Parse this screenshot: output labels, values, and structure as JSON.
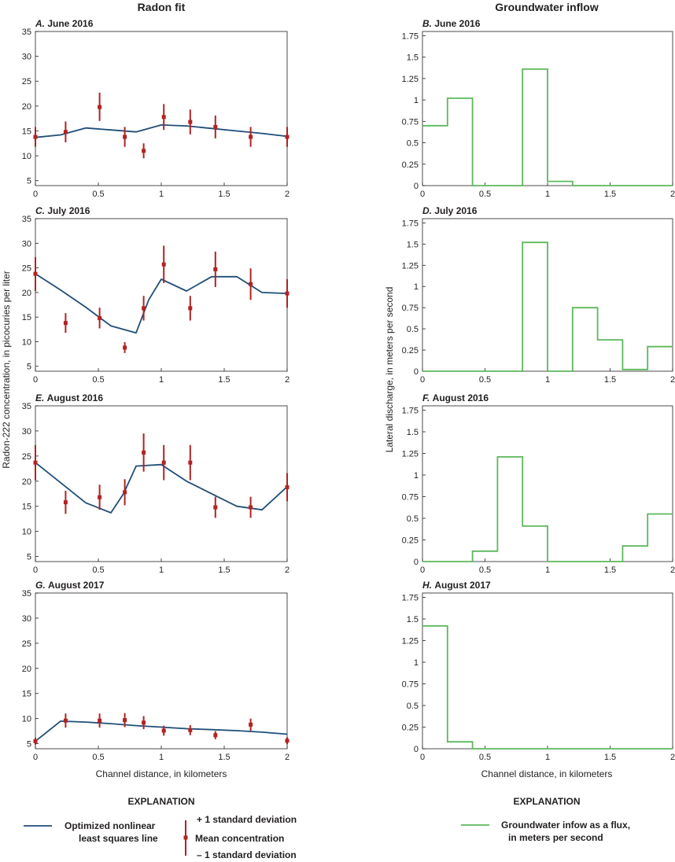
{
  "figure": {
    "left_column_title": "Radon fit",
    "right_column_title": "Groundwater inflow",
    "radon_ylabel": "Radon-222 concentration, in picocuries per liter",
    "inflow_ylabel": "Lateral discharge, in meters per second",
    "xlabel": "Channel distance, in kilometers"
  },
  "legend_left": {
    "heading": "EXPLANATION",
    "line_label_1": "Optimized nonlinear",
    "line_label_2": "least squares line",
    "plus_sd": "+ 1 standard deviation",
    "mean": "Mean concentration",
    "minus_sd": "– 1 standard deviation"
  },
  "legend_right": {
    "heading": "EXPLANATION",
    "label_1": "Groundwater infow as a flux,",
    "label_2": "in meters per second"
  },
  "colors": {
    "fit_line": "#1f4e79",
    "observation": "#b22222",
    "inflow": "#5cb85c",
    "axis": "#231f20"
  },
  "chart_data": [
    {
      "id": "A",
      "type": "line",
      "prefix": "A.",
      "title": "June 2016",
      "xlim": [
        0,
        2
      ],
      "ylim": [
        4,
        35
      ],
      "xticks": [
        "0",
        "0.5",
        "1",
        "1.5",
        "2"
      ],
      "yticks": [
        "5",
        "10",
        "15",
        "20",
        "25",
        "30",
        "35"
      ],
      "fit": [
        [
          0,
          13.7
        ],
        [
          0.2,
          14.2
        ],
        [
          0.4,
          15.6
        ],
        [
          0.6,
          15.2
        ],
        [
          0.8,
          14.8
        ],
        [
          1.0,
          16.2
        ],
        [
          1.2,
          16.0
        ],
        [
          1.4,
          15.5
        ],
        [
          1.6,
          15.0
        ],
        [
          1.8,
          14.5
        ],
        [
          2.0,
          13.9
        ]
      ],
      "obs": [
        [
          0,
          13.8,
          11.8,
          15.8
        ],
        [
          0.24,
          14.8,
          12.7,
          16.9
        ],
        [
          0.51,
          19.8,
          17.0,
          22.7
        ],
        [
          0.71,
          13.8,
          11.8,
          15.8
        ],
        [
          0.86,
          11.0,
          9.5,
          12.5
        ],
        [
          1.02,
          17.8,
          15.2,
          20.4
        ],
        [
          1.23,
          16.8,
          14.3,
          19.3
        ],
        [
          1.43,
          15.8,
          13.5,
          18.1
        ],
        [
          1.71,
          13.8,
          11.8,
          15.8
        ],
        [
          2.0,
          13.8,
          11.8,
          15.8
        ]
      ]
    },
    {
      "id": "B",
      "type": "step",
      "prefix": "B.",
      "title": "June 2016",
      "xlim": [
        0,
        2
      ],
      "ylim": [
        0,
        1.8
      ],
      "xticks": [
        "0",
        "0.5",
        "1",
        "1.5",
        "2"
      ],
      "yticks": [
        "0",
        "0.25",
        "0.5",
        "0.75",
        "1",
        "1.25",
        "1.5",
        "1.75"
      ],
      "edges": [
        0,
        0.2,
        0.4,
        0.6,
        0.8,
        1.0,
        1.2,
        1.4,
        1.6,
        1.8,
        2.0
      ],
      "values": [
        0.7,
        1.02,
        0,
        0,
        1.36,
        0.05,
        0,
        0,
        0,
        0
      ]
    },
    {
      "id": "C",
      "type": "line",
      "prefix": "C.",
      "title": "July 2016",
      "xlim": [
        0,
        2
      ],
      "ylim": [
        4,
        35
      ],
      "xticks": [
        "0",
        "0.5",
        "1",
        "1.5",
        "2"
      ],
      "yticks": [
        "5",
        "10",
        "15",
        "20",
        "25",
        "30",
        "35"
      ],
      "fit": [
        [
          0,
          23.8
        ],
        [
          0.2,
          20.5
        ],
        [
          0.4,
          17.0
        ],
        [
          0.6,
          13.2
        ],
        [
          0.8,
          11.8
        ],
        [
          0.9,
          18.5
        ],
        [
          1.0,
          22.7
        ],
        [
          1.2,
          20.3
        ],
        [
          1.4,
          23.2
        ],
        [
          1.6,
          23.2
        ],
        [
          1.8,
          20.0
        ],
        [
          2.0,
          19.8
        ]
      ],
      "obs": [
        [
          0,
          23.8,
          20.3,
          27.2
        ],
        [
          0.24,
          13.8,
          11.8,
          15.8
        ],
        [
          0.51,
          14.8,
          12.7,
          16.9
        ],
        [
          0.71,
          8.8,
          7.7,
          9.9
        ],
        [
          0.86,
          16.8,
          14.3,
          19.3
        ],
        [
          1.02,
          25.7,
          21.9,
          29.5
        ],
        [
          1.23,
          16.8,
          14.3,
          19.3
        ],
        [
          1.43,
          24.7,
          21.1,
          28.3
        ],
        [
          1.71,
          21.7,
          18.5,
          24.9
        ],
        [
          2.0,
          19.8,
          16.9,
          22.7
        ]
      ]
    },
    {
      "id": "D",
      "type": "step",
      "prefix": "D.",
      "title": "July 2016",
      "xlim": [
        0,
        2
      ],
      "ylim": [
        0,
        1.8
      ],
      "xticks": [
        "0",
        "0.5",
        "1",
        "1.5",
        "2"
      ],
      "yticks": [
        "0",
        "0.25",
        "0.5",
        "0.75",
        "1",
        "1.25",
        "1.5",
        "1.75"
      ],
      "edges": [
        0,
        0.2,
        0.4,
        0.6,
        0.8,
        1.0,
        1.2,
        1.4,
        1.6,
        1.8,
        2.0
      ],
      "values": [
        0,
        0,
        0,
        0,
        1.52,
        0,
        0.75,
        0.37,
        0.02,
        0.29
      ]
    },
    {
      "id": "E",
      "type": "line",
      "prefix": "E.",
      "title": "August 2016",
      "xlim": [
        0,
        2
      ],
      "ylim": [
        4,
        35
      ],
      "xticks": [
        "0",
        "0.5",
        "1",
        "1.5",
        "2"
      ],
      "yticks": [
        "5",
        "10",
        "15",
        "20",
        "25",
        "30",
        "35"
      ],
      "fit": [
        [
          0,
          23.7
        ],
        [
          0.2,
          19.7
        ],
        [
          0.4,
          15.7
        ],
        [
          0.6,
          13.7
        ],
        [
          0.7,
          17.5
        ],
        [
          0.8,
          23.0
        ],
        [
          1.0,
          23.3
        ],
        [
          1.2,
          20.0
        ],
        [
          1.4,
          17.5
        ],
        [
          1.6,
          15.0
        ],
        [
          1.8,
          14.3
        ],
        [
          2.0,
          18.9
        ]
      ],
      "obs": [
        [
          0,
          23.7,
          20.2,
          27.2
        ],
        [
          0.24,
          15.8,
          13.5,
          18.1
        ],
        [
          0.51,
          16.8,
          14.3,
          19.3
        ],
        [
          0.71,
          17.8,
          15.2,
          20.4
        ],
        [
          0.86,
          25.7,
          21.9,
          29.5
        ],
        [
          1.02,
          23.7,
          20.2,
          27.2
        ],
        [
          1.23,
          23.7,
          20.2,
          27.2
        ],
        [
          1.43,
          14.8,
          12.7,
          16.9
        ],
        [
          1.71,
          14.8,
          12.7,
          16.9
        ],
        [
          2.0,
          18.8,
          16.0,
          21.6
        ]
      ]
    },
    {
      "id": "F",
      "type": "step",
      "prefix": "F.",
      "title": "August 2016",
      "xlim": [
        0,
        2
      ],
      "ylim": [
        0,
        1.8
      ],
      "xticks": [
        "0",
        "0.5",
        "1",
        "1.5",
        "2"
      ],
      "yticks": [
        "0",
        "0.25",
        "0.5",
        "0.75",
        "1",
        "1.25",
        "1.5",
        "1.75"
      ],
      "edges": [
        0,
        0.2,
        0.4,
        0.6,
        0.8,
        1.0,
        1.2,
        1.4,
        1.6,
        1.8,
        2.0
      ],
      "values": [
        0,
        0,
        0.12,
        1.21,
        0.41,
        0,
        0,
        0,
        0.18,
        0.55
      ]
    },
    {
      "id": "G",
      "type": "line",
      "prefix": "G.",
      "title": "August 2017",
      "xlim": [
        0,
        2
      ],
      "ylim": [
        4,
        35
      ],
      "xticks": [
        "0",
        "0.5",
        "1",
        "1.5",
        "2"
      ],
      "yticks": [
        "5",
        "10",
        "15",
        "20",
        "25",
        "30",
        "35"
      ],
      "fit": [
        [
          0,
          5.5
        ],
        [
          0.2,
          9.5
        ],
        [
          0.4,
          9.3
        ],
        [
          0.6,
          9.0
        ],
        [
          0.8,
          8.6
        ],
        [
          1.0,
          8.3
        ],
        [
          1.2,
          8.0
        ],
        [
          1.4,
          7.8
        ],
        [
          1.6,
          7.6
        ],
        [
          1.8,
          7.3
        ],
        [
          2.0,
          6.9
        ]
      ],
      "obs": [
        [
          0,
          5.5,
          4.8,
          6.2
        ],
        [
          0.24,
          9.6,
          8.2,
          11.0
        ],
        [
          0.51,
          9.6,
          8.2,
          11.0
        ],
        [
          0.71,
          9.7,
          8.3,
          11.1
        ],
        [
          0.86,
          9.2,
          7.9,
          10.5
        ],
        [
          1.02,
          7.6,
          6.6,
          8.6
        ],
        [
          1.23,
          7.7,
          6.7,
          8.7
        ],
        [
          1.43,
          6.7,
          5.9,
          7.5
        ],
        [
          1.71,
          8.8,
          7.6,
          10.0
        ],
        [
          2.0,
          5.6,
          4.9,
          6.3
        ]
      ]
    },
    {
      "id": "H",
      "type": "step",
      "prefix": "H.",
      "title": "August 2017",
      "xlim": [
        0,
        2
      ],
      "ylim": [
        0,
        1.8
      ],
      "xticks": [
        "0",
        "0.5",
        "1",
        "1.5",
        "2"
      ],
      "yticks": [
        "0",
        "0.25",
        "0.5",
        "0.75",
        "1",
        "1.25",
        "1.5",
        "1.75"
      ],
      "edges": [
        0,
        0.2,
        0.4,
        0.6,
        0.8,
        1.0,
        1.2,
        1.4,
        1.6,
        1.8,
        2.0
      ],
      "values": [
        1.42,
        0.08,
        0,
        0,
        0,
        0,
        0,
        0,
        0,
        0
      ]
    }
  ]
}
